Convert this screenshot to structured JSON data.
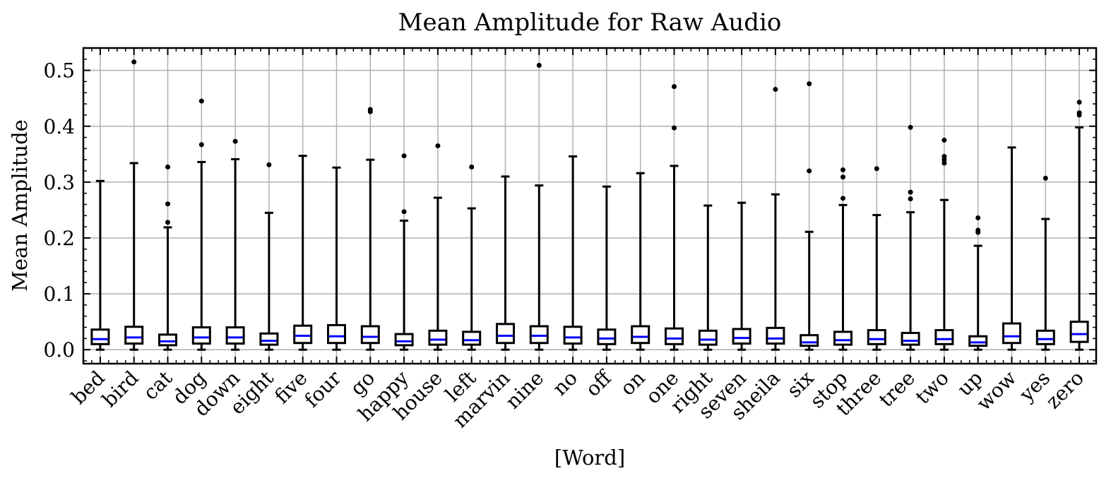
{
  "chart_data": {
    "type": "box",
    "title": "Mean Amplitude for Raw Audio",
    "xlabel": "[Word]",
    "ylabel": "Mean Amplitude",
    "ylim": [
      -0.025,
      0.54
    ],
    "yticks": [
      "0.0",
      "0.1",
      "0.2",
      "0.3",
      "0.4",
      "0.5"
    ],
    "grid": true,
    "colors": {
      "box": "#000000",
      "median": "#0000ff",
      "grid": "#b0b0b0"
    },
    "categories": [
      "bed",
      "bird",
      "cat",
      "dog",
      "down",
      "eight",
      "five",
      "four",
      "go",
      "happy",
      "house",
      "left",
      "marvin",
      "nine",
      "no",
      "off",
      "on",
      "one",
      "right",
      "seven",
      "sheila",
      "six",
      "stop",
      "three",
      "tree",
      "two",
      "up",
      "wow",
      "yes",
      "zero"
    ],
    "series": [
      {
        "category": "bed",
        "whisker_low": 0.0,
        "q1": 0.01,
        "median": 0.019,
        "q3": 0.036,
        "whisker_high": 0.302,
        "outliers": []
      },
      {
        "category": "bird",
        "whisker_low": 0.0,
        "q1": 0.011,
        "median": 0.022,
        "q3": 0.041,
        "whisker_high": 0.334,
        "outliers": [
          0.515
        ]
      },
      {
        "category": "cat",
        "whisker_low": 0.0,
        "q1": 0.008,
        "median": 0.015,
        "q3": 0.027,
        "whisker_high": 0.219,
        "outliers": [
          0.228,
          0.261,
          0.327
        ]
      },
      {
        "category": "dog",
        "whisker_low": 0.0,
        "q1": 0.011,
        "median": 0.022,
        "q3": 0.04,
        "whisker_high": 0.336,
        "outliers": [
          0.367,
          0.445
        ]
      },
      {
        "category": "down",
        "whisker_low": 0.0,
        "q1": 0.011,
        "median": 0.022,
        "q3": 0.04,
        "whisker_high": 0.341,
        "outliers": [
          0.373
        ]
      },
      {
        "category": "eight",
        "whisker_low": 0.0,
        "q1": 0.009,
        "median": 0.016,
        "q3": 0.029,
        "whisker_high": 0.245,
        "outliers": [
          0.331
        ]
      },
      {
        "category": "five",
        "whisker_low": 0.0,
        "q1": 0.012,
        "median": 0.025,
        "q3": 0.043,
        "whisker_high": 0.347,
        "outliers": []
      },
      {
        "category": "four",
        "whisker_low": 0.0,
        "q1": 0.012,
        "median": 0.024,
        "q3": 0.044,
        "whisker_high": 0.326,
        "outliers": []
      },
      {
        "category": "go",
        "whisker_low": 0.0,
        "q1": 0.012,
        "median": 0.023,
        "q3": 0.042,
        "whisker_high": 0.34,
        "outliers": [
          0.426,
          0.43
        ]
      },
      {
        "category": "happy",
        "whisker_low": 0.0,
        "q1": 0.008,
        "median": 0.015,
        "q3": 0.028,
        "whisker_high": 0.231,
        "outliers": [
          0.247,
          0.347
        ]
      },
      {
        "category": "house",
        "whisker_low": 0.0,
        "q1": 0.009,
        "median": 0.018,
        "q3": 0.034,
        "whisker_high": 0.272,
        "outliers": [
          0.365
        ]
      },
      {
        "category": "left",
        "whisker_low": 0.0,
        "q1": 0.009,
        "median": 0.017,
        "q3": 0.032,
        "whisker_high": 0.253,
        "outliers": [
          0.327
        ]
      },
      {
        "category": "marvin",
        "whisker_low": 0.0,
        "q1": 0.012,
        "median": 0.025,
        "q3": 0.046,
        "whisker_high": 0.31,
        "outliers": []
      },
      {
        "category": "nine",
        "whisker_low": 0.0,
        "q1": 0.012,
        "median": 0.025,
        "q3": 0.042,
        "whisker_high": 0.294,
        "outliers": [
          0.509
        ]
      },
      {
        "category": "no",
        "whisker_low": 0.0,
        "q1": 0.011,
        "median": 0.022,
        "q3": 0.041,
        "whisker_high": 0.346,
        "outliers": []
      },
      {
        "category": "off",
        "whisker_low": 0.0,
        "q1": 0.01,
        "median": 0.02,
        "q3": 0.036,
        "whisker_high": 0.292,
        "outliers": []
      },
      {
        "category": "on",
        "whisker_low": 0.0,
        "q1": 0.012,
        "median": 0.023,
        "q3": 0.042,
        "whisker_high": 0.316,
        "outliers": []
      },
      {
        "category": "one",
        "whisker_low": 0.0,
        "q1": 0.01,
        "median": 0.02,
        "q3": 0.038,
        "whisker_high": 0.329,
        "outliers": [
          0.397,
          0.471
        ]
      },
      {
        "category": "right",
        "whisker_low": 0.0,
        "q1": 0.009,
        "median": 0.018,
        "q3": 0.034,
        "whisker_high": 0.258,
        "outliers": []
      },
      {
        "category": "seven",
        "whisker_low": 0.0,
        "q1": 0.011,
        "median": 0.021,
        "q3": 0.037,
        "whisker_high": 0.263,
        "outliers": []
      },
      {
        "category": "sheila",
        "whisker_low": 0.0,
        "q1": 0.011,
        "median": 0.02,
        "q3": 0.039,
        "whisker_high": 0.278,
        "outliers": [
          0.466
        ]
      },
      {
        "category": "six",
        "whisker_low": 0.0,
        "q1": 0.007,
        "median": 0.013,
        "q3": 0.026,
        "whisker_high": 0.211,
        "outliers": [
          0.32,
          0.476
        ]
      },
      {
        "category": "stop",
        "whisker_low": 0.0,
        "q1": 0.009,
        "median": 0.017,
        "q3": 0.032,
        "whisker_high": 0.259,
        "outliers": [
          0.271,
          0.309,
          0.322
        ]
      },
      {
        "category": "three",
        "whisker_low": 0.0,
        "q1": 0.01,
        "median": 0.019,
        "q3": 0.035,
        "whisker_high": 0.241,
        "outliers": [
          0.324
        ]
      },
      {
        "category": "tree",
        "whisker_low": 0.0,
        "q1": 0.009,
        "median": 0.016,
        "q3": 0.03,
        "whisker_high": 0.246,
        "outliers": [
          0.27,
          0.282,
          0.398
        ]
      },
      {
        "category": "two",
        "whisker_low": 0.0,
        "q1": 0.01,
        "median": 0.019,
        "q3": 0.035,
        "whisker_high": 0.268,
        "outliers": [
          0.334,
          0.34,
          0.346,
          0.375
        ]
      },
      {
        "category": "up",
        "whisker_low": 0.0,
        "q1": 0.007,
        "median": 0.013,
        "q3": 0.024,
        "whisker_high": 0.186,
        "outliers": [
          0.21,
          0.214,
          0.236
        ]
      },
      {
        "category": "wow",
        "whisker_low": 0.0,
        "q1": 0.012,
        "median": 0.024,
        "q3": 0.047,
        "whisker_high": 0.362,
        "outliers": []
      },
      {
        "category": "yes",
        "whisker_low": 0.0,
        "q1": 0.01,
        "median": 0.019,
        "q3": 0.034,
        "whisker_high": 0.234,
        "outliers": [
          0.307
        ]
      },
      {
        "category": "zero",
        "whisker_low": 0.0,
        "q1": 0.014,
        "median": 0.028,
        "q3": 0.05,
        "whisker_high": 0.398,
        "outliers": [
          0.42,
          0.424,
          0.443
        ]
      }
    ]
  }
}
